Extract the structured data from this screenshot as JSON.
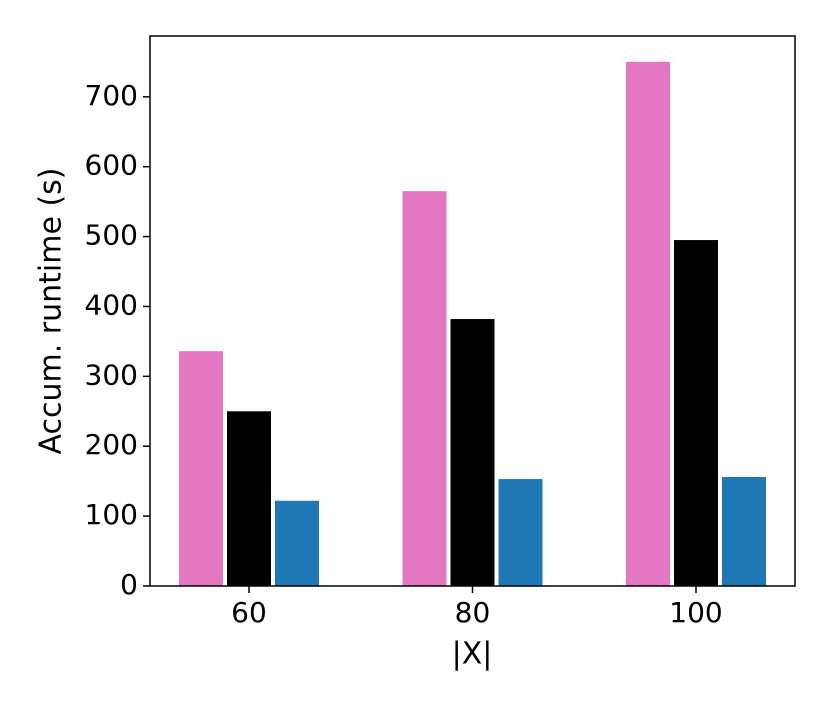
{
  "chart_data": {
    "type": "bar",
    "x_label": "|X|",
    "y_label": "Accum. runtime (s)",
    "categories": [
      "60",
      "80",
      "100"
    ],
    "series": [
      {
        "color": "#e377c2",
        "values": [
          336,
          565,
          750
        ]
      },
      {
        "color": "#000000",
        "values": [
          250,
          382,
          495
        ]
      },
      {
        "color": "#1f77b4",
        "values": [
          122,
          153,
          156
        ]
      }
    ],
    "ylim": [
      0,
      787
    ],
    "yticks": [
      0,
      100,
      200,
      300,
      400,
      500,
      600,
      700
    ],
    "grid": false
  }
}
